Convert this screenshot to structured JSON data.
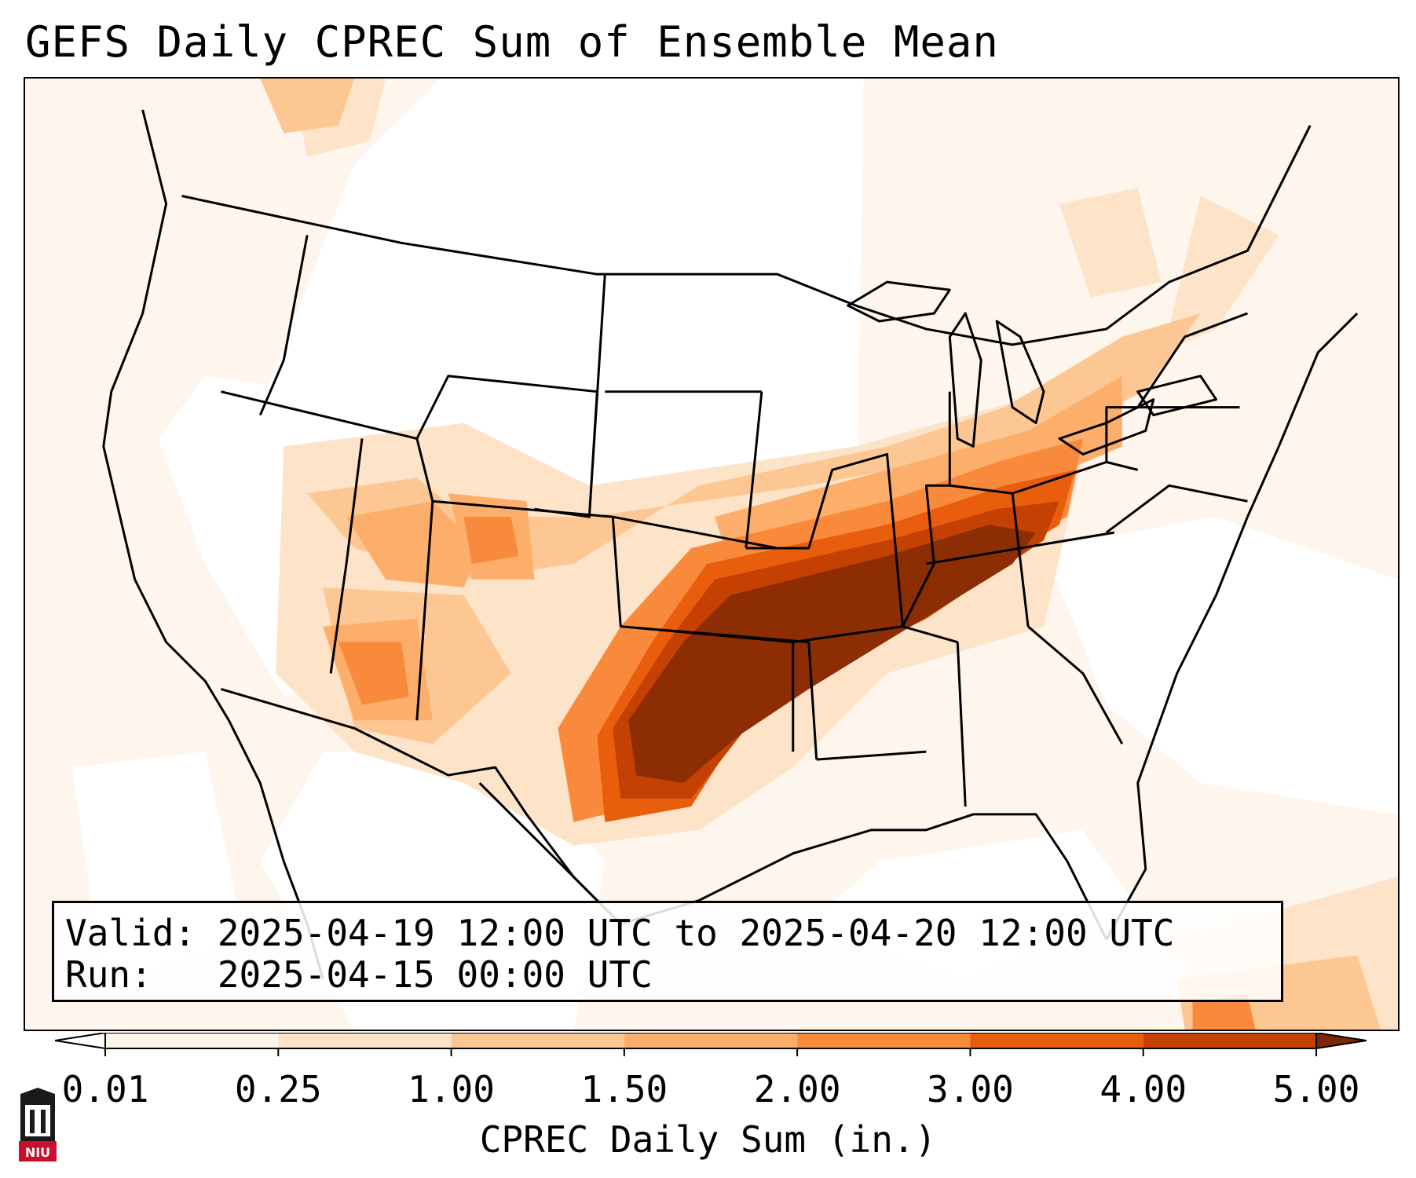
{
  "title": "GEFS Daily CPREC Sum of Ensemble Mean",
  "info": {
    "valid_line": "Valid: 2025-04-19 12:00 UTC to 2025-04-20 12:00 UTC",
    "run_line": "Run:   2025-04-15 00:00 UTC"
  },
  "colorbar": {
    "label": "CPREC Daily Sum (in.)",
    "ticks": [
      "0.01",
      "0.25",
      "1.00",
      "1.50",
      "2.00",
      "3.00",
      "4.00",
      "5.00"
    ],
    "colors": [
      "#fef4e8",
      "#fde3c8",
      "#fdc794",
      "#fdae6b",
      "#f98a3c",
      "#e95e0d",
      "#c44103",
      "#8c2d04"
    ],
    "under_color": "#ffffff",
    "over_color": "#7a2803"
  },
  "map": {
    "region": "Continental United States",
    "field": "CPREC",
    "heaviest_area": "Oklahoma / Arkansas / Tennessee",
    "max_value_in": 5.0
  },
  "logo": {
    "text": "NIU",
    "color": "#c8102e"
  }
}
